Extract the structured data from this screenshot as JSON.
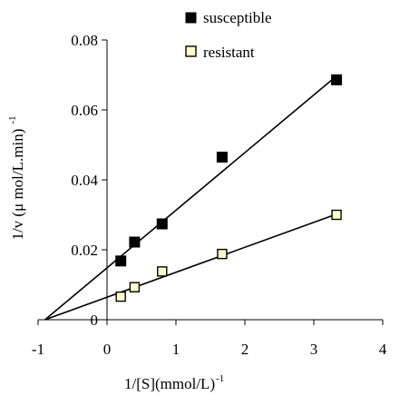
{
  "chart_data": {
    "type": "scatter",
    "xlabel": "1/[S](mmol/L)",
    "xlabel_sup": "-1",
    "ylabel": "1/v (μ mol/L.min)",
    "ylabel_sup": "-1",
    "xlim": [
      -1,
      4
    ],
    "ylim": [
      0,
      0.08
    ],
    "x_ticks": [
      -1,
      0,
      1,
      2,
      3,
      4
    ],
    "x_tick_labels": [
      "-1",
      "0",
      "1",
      "2",
      "3",
      "4"
    ],
    "y_ticks": [
      0,
      0.02,
      0.04,
      0.06,
      0.08
    ],
    "y_tick_labels": [
      "0",
      "0.02",
      "0.04",
      "0.06",
      "0.08"
    ],
    "grid": false,
    "legend_position": "top-center",
    "series": [
      {
        "name": "susceptible",
        "marker": "filled-square",
        "color": "#000000",
        "x": [
          0.2,
          0.4,
          0.8,
          1.67,
          3.33
        ],
        "y": [
          0.0168,
          0.0222,
          0.0274,
          0.0465,
          0.0686
        ],
        "fit_line": {
          "x_start": -0.9,
          "y_start": 0.0,
          "x_end": 3.33,
          "y_end": 0.0697
        }
      },
      {
        "name": "resistant",
        "marker": "open-square",
        "color": "#ffffcc",
        "x": [
          0.2,
          0.4,
          0.8,
          1.67,
          3.33
        ],
        "y": [
          0.0066,
          0.0093,
          0.0138,
          0.0188,
          0.03
        ],
        "fit_line": {
          "x_start": -0.9,
          "y_start": 0.0,
          "x_end": 3.33,
          "y_end": 0.0302
        }
      }
    ]
  }
}
